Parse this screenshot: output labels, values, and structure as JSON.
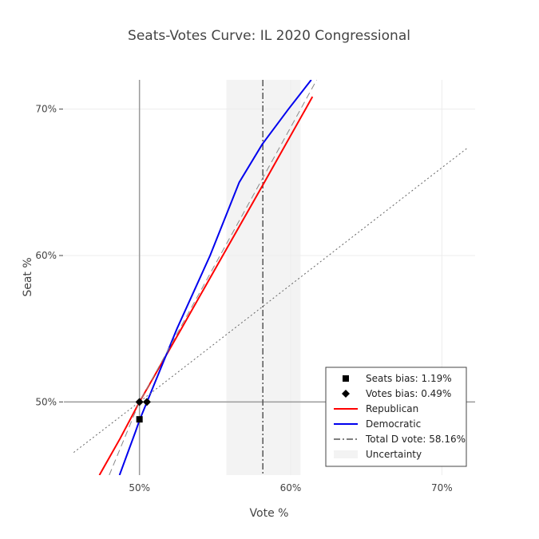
{
  "chart_data": {
    "type": "line",
    "title": "Seats-Votes Curve: IL 2020 Congressional",
    "xlabel": "Vote %",
    "ylabel": "Seat %",
    "xlim": [
      0.45,
      0.722
    ],
    "ylim": [
      0.45,
      0.72
    ],
    "x_ticks": [
      {
        "value": 0.5,
        "label": "50%"
      },
      {
        "value": 0.6,
        "label": "60%"
      },
      {
        "value": 0.7,
        "label": "70%"
      }
    ],
    "y_ticks": [
      {
        "value": 0.5,
        "label": "50%"
      },
      {
        "value": 0.6,
        "label": "60%"
      },
      {
        "value": 0.7,
        "label": "70%"
      }
    ],
    "grid": true,
    "legend_position": "bottom-right",
    "colors": {
      "republican": "#ff0000",
      "democratic": "#0000ee",
      "reference": "#555555",
      "uncertainty": "#f3f3f3"
    },
    "uncertainty_band": {
      "x0": 0.5575,
      "x1": 0.6065
    },
    "total_d_vote": 0.5816,
    "series": [
      {
        "name": "Republican",
        "color": "#ff0000",
        "dash": "solid",
        "points": [
          [
            0.4735,
            0.45
          ],
          [
            0.4872,
            0.475
          ],
          [
            0.5,
            0.5
          ],
          [
            0.5277,
            0.55
          ],
          [
            0.5551,
            0.6
          ],
          [
            0.5826,
            0.65
          ],
          [
            0.6098,
            0.7
          ],
          [
            0.6144,
            0.7085
          ]
        ]
      },
      {
        "name": "Democratic",
        "color": "#0000ee",
        "dash": "solid",
        "points": [
          [
            0.4868,
            0.45
          ],
          [
            0.4975,
            0.48
          ],
          [
            0.5,
            0.4875
          ],
          [
            0.5248,
            0.55
          ],
          [
            0.5467,
            0.6
          ],
          [
            0.566,
            0.65
          ],
          [
            0.5812,
            0.676
          ],
          [
            0.5985,
            0.7
          ],
          [
            0.6136,
            0.72
          ]
        ]
      },
      {
        "name": "",
        "color": "#888888",
        "dash": "long",
        "points": [
          [
            0.48,
            0.45
          ],
          [
            0.5,
            0.5
          ],
          [
            0.5533,
            0.6
          ],
          [
            0.6066,
            0.7
          ],
          [
            0.6172,
            0.72
          ]
        ]
      },
      {
        "name": "",
        "color": "#666666",
        "dash": "dot",
        "points": [
          [
            0.4565,
            0.4655
          ],
          [
            0.5,
            0.5
          ],
          [
            0.6,
            0.58
          ],
          [
            0.7,
            0.66
          ],
          [
            0.7167,
            0.6733
          ]
        ]
      }
    ],
    "markers": [
      {
        "name": "Seats bias: 1.19%",
        "symbol": "square",
        "points": [
          [
            0.5,
            0.4881
          ]
        ]
      },
      {
        "name": "Votes bias: 0.49%",
        "symbol": "diamond",
        "points": [
          [
            0.5,
            0.5
          ],
          [
            0.5049,
            0.5
          ]
        ]
      }
    ],
    "legend": [
      {
        "label": "Seats bias: 1.19%",
        "kind": "square",
        "color": "#000000"
      },
      {
        "label": "Votes bias: 0.49%",
        "kind": "diamond",
        "color": "#000000"
      },
      {
        "label": "Republican",
        "kind": "line",
        "color": "#ff0000"
      },
      {
        "label": "Democratic",
        "kind": "line",
        "color": "#0000ee"
      },
      {
        "label": "Total D vote: 58.16%",
        "kind": "dashdot",
        "color": "#555555"
      },
      {
        "label": "Uncertainty",
        "kind": "band",
        "color": "#f3f3f3"
      }
    ]
  }
}
